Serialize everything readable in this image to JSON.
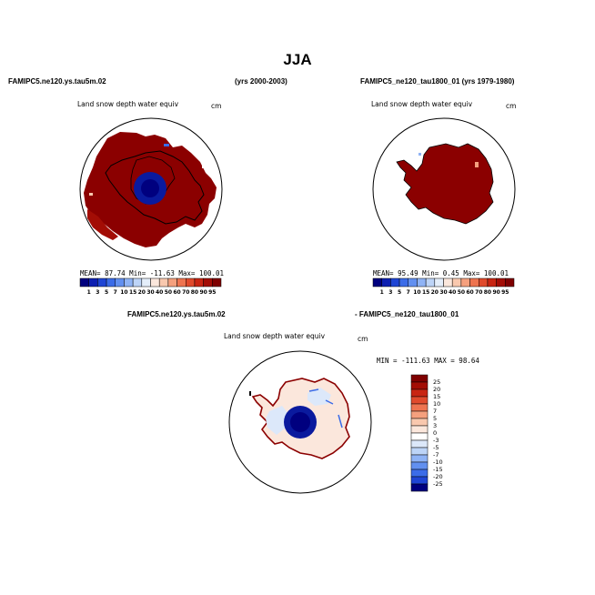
{
  "page_title": "JJA",
  "panel1": {
    "case": "FAMIPC5.ne120.ys.tau5m.02",
    "years": "(yrs 2000-2003)",
    "variable": "Land snow depth water equiv",
    "units": "cm",
    "stats": "MEAN=  87.74  Min= -11.63  Max= 100.01"
  },
  "panel2": {
    "case": "FAMIPC5_ne120_tau1800_01 (yrs 1979-1980)",
    "variable": "Land snow depth water equiv",
    "units": "cm",
    "stats": "MEAN=  95.49  Min=   0.45  Max= 100.01"
  },
  "panel3": {
    "case_a": "FAMIPC5.ne120.ys.tau5m.02",
    "case_b": "- FAMIPC5_ne120_tau1800_01",
    "variable": "Land snow depth water equiv",
    "units": "cm",
    "stats": "MIN = -111.63  MAX =  98.64"
  },
  "field_colorbar": {
    "labels": [
      "1",
      "3",
      "5",
      "7",
      "10",
      "15",
      "20",
      "30",
      "40",
      "50",
      "60",
      "70",
      "80",
      "90",
      "95"
    ],
    "colors": [
      "#00007f",
      "#0d1fb1",
      "#1f45d4",
      "#3b6ce8",
      "#6290f0",
      "#8fb3f5",
      "#bdd4f7",
      "#e4eefa",
      "#fbe7dc",
      "#f9c8ae",
      "#f5a07e",
      "#ee7450",
      "#e04a2c",
      "#c82512",
      "#a30d05",
      "#7f0000"
    ]
  },
  "diff_colorbar": {
    "labels": [
      "25",
      "20",
      "15",
      "10",
      "7",
      "5",
      "3",
      "0",
      "-3",
      "-5",
      "-7",
      "-10",
      "-15",
      "-20",
      "-25"
    ],
    "colors": [
      "#7f0000",
      "#a30d05",
      "#c82512",
      "#e04a2c",
      "#ee7450",
      "#f5a07e",
      "#f9c8ae",
      "#fbe7dc",
      "#ffffff",
      "#dce8fa",
      "#bdd4f7",
      "#8fb3f5",
      "#6290f0",
      "#3b6ce8",
      "#1f45d4",
      "#00007f"
    ]
  }
}
